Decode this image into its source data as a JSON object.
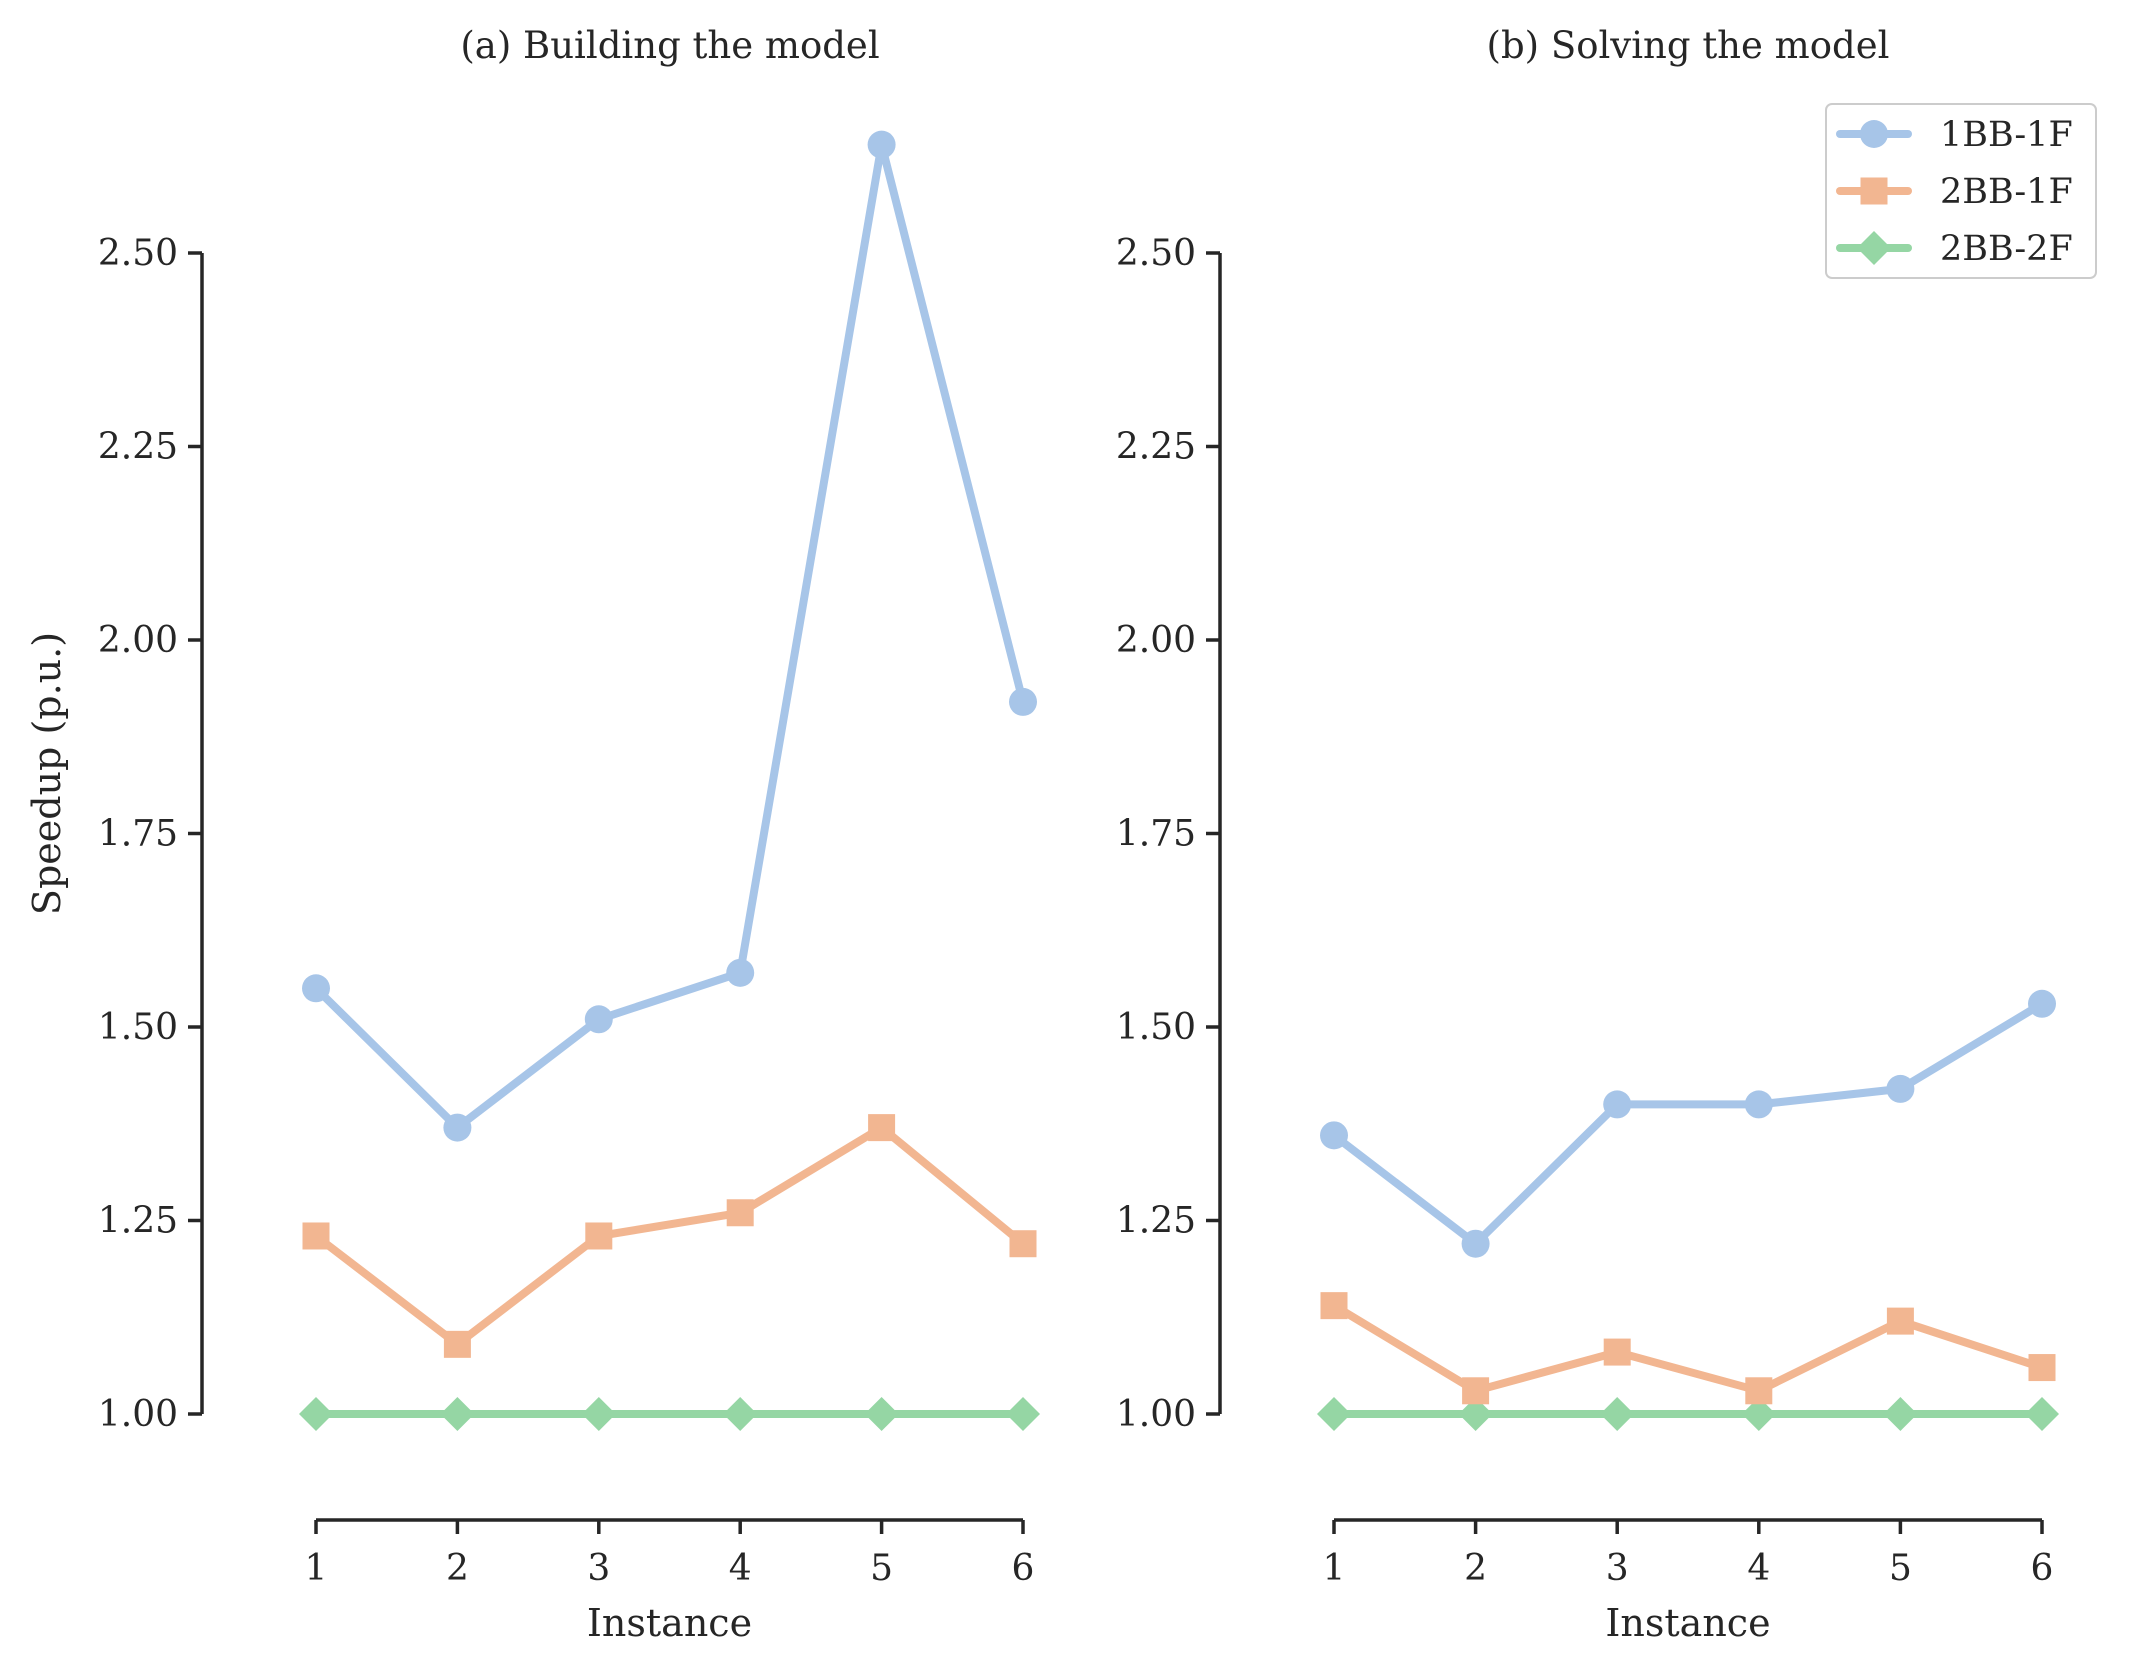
{
  "chart_data": [
    {
      "type": "line",
      "title": "(a) Building the model",
      "xlabel": "Instance",
      "ylabel": "Speedup (p.u.)",
      "x": [
        1,
        2,
        3,
        4,
        5,
        6
      ],
      "xticks": [
        "1",
        "2",
        "3",
        "4",
        "5",
        "6"
      ],
      "yticks": [
        "1.00",
        "1.25",
        "1.50",
        "1.75",
        "2.00",
        "2.25",
        "2.50"
      ],
      "ylim": [
        0.87,
        2.63
      ],
      "series": [
        {
          "name": "1BB-1F",
          "marker": "circle",
          "color": "#a7c5e8",
          "values": [
            1.55,
            1.37,
            1.51,
            1.57,
            2.64,
            1.92
          ]
        },
        {
          "name": "2BB-1F",
          "marker": "square",
          "color": "#f2b691",
          "values": [
            1.23,
            1.09,
            1.23,
            1.26,
            1.37,
            1.22
          ]
        },
        {
          "name": "2BB-2F",
          "marker": "diamond",
          "color": "#95d6a4",
          "values": [
            1.0,
            1.0,
            1.0,
            1.0,
            1.0,
            1.0
          ]
        }
      ]
    },
    {
      "type": "line",
      "title": "(b) Solving the model",
      "xlabel": "Instance",
      "ylabel": "",
      "x": [
        1,
        2,
        3,
        4,
        5,
        6
      ],
      "xticks": [
        "1",
        "2",
        "3",
        "4",
        "5",
        "6"
      ],
      "yticks": [
        "1.00",
        "1.25",
        "1.50",
        "1.75",
        "2.00",
        "2.25",
        "2.50"
      ],
      "ylim": [
        0.87,
        2.63
      ],
      "legend": "top-right",
      "series": [
        {
          "name": "1BB-1F",
          "marker": "circle",
          "color": "#a7c5e8",
          "values": [
            1.36,
            1.22,
            1.4,
            1.4,
            1.42,
            1.53
          ]
        },
        {
          "name": "2BB-1F",
          "marker": "square",
          "color": "#f2b691",
          "values": [
            1.14,
            1.03,
            1.08,
            1.03,
            1.12,
            1.06
          ]
        },
        {
          "name": "2BB-2F",
          "marker": "diamond",
          "color": "#95d6a4",
          "values": [
            1.0,
            1.0,
            1.0,
            1.0,
            1.0,
            1.0
          ]
        }
      ]
    }
  ]
}
